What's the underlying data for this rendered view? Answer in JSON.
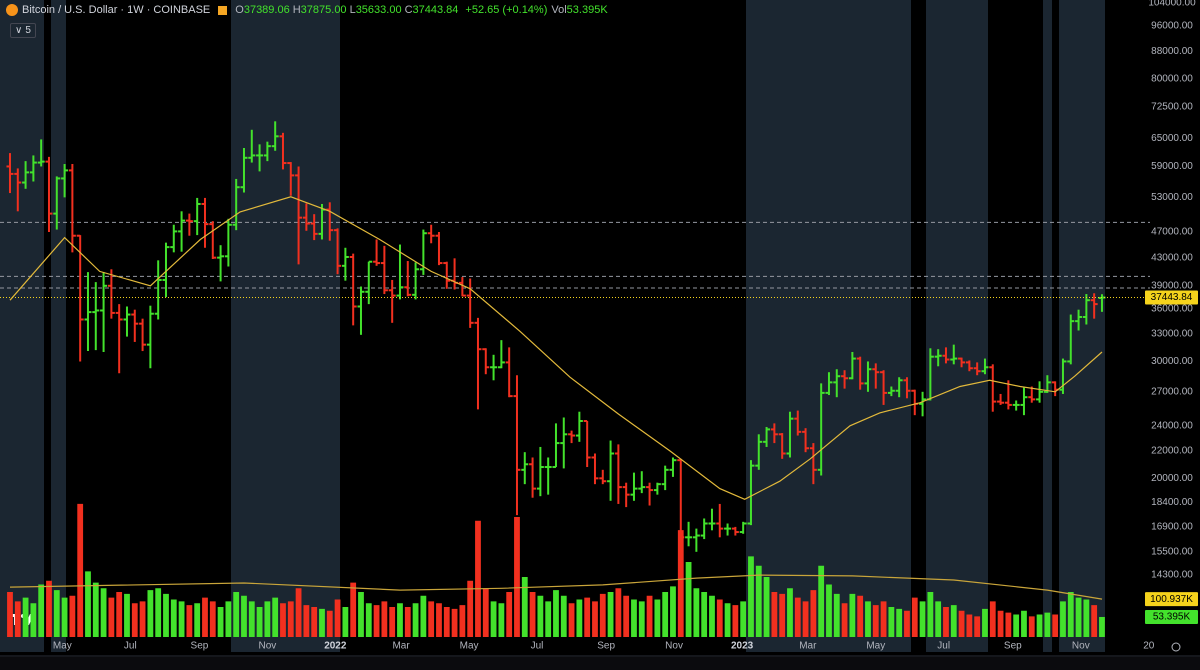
{
  "chart_data": {
    "type": "ohlc",
    "title": "Bitcoin / U.S. Dollar · 1W · COINBASE",
    "legend_values": [
      {
        "label": "O",
        "text": "37389.06"
      },
      {
        "label": "H",
        "text": "37875.00"
      },
      {
        "label": "L",
        "text": "35633.00"
      },
      {
        "label": "C",
        "text": "37443.84"
      }
    ],
    "change": "+52.65 (+0.14%)",
    "volume_label": "Vol",
    "volume_text": "53.395K",
    "indicator_count": 5,
    "log_scale": true,
    "up_color": "#43e22c",
    "down_color": "#f2301f",
    "ylim": [
      10950,
      105100
    ],
    "yticks": [
      {
        "value": 104000,
        "label": "104000.00"
      },
      {
        "value": 96000,
        "label": "96000.00"
      },
      {
        "value": 88000,
        "label": "88000.00"
      },
      {
        "value": 80000,
        "label": "80000.00"
      },
      {
        "value": 72500,
        "label": "72500.00"
      },
      {
        "value": 65000,
        "label": "65000.00"
      },
      {
        "value": 59000,
        "label": "59000.00"
      },
      {
        "value": 53000,
        "label": "53000.00"
      },
      {
        "value": 47000,
        "label": "47000.00"
      },
      {
        "value": 43000,
        "label": "43000.00"
      },
      {
        "value": 39000,
        "label": "39000.00"
      },
      {
        "value": 36000,
        "label": "36000.00"
      },
      {
        "value": 33000,
        "label": "33000.00"
      },
      {
        "value": 30000,
        "label": "30000.00"
      },
      {
        "value": 27000,
        "label": "27000.00"
      },
      {
        "value": 24000,
        "label": "24000.00"
      },
      {
        "value": 22000,
        "label": "22000.00"
      },
      {
        "value": 20000,
        "label": "20000.00"
      },
      {
        "value": 18400,
        "label": "18400.00"
      },
      {
        "value": 16900,
        "label": "16900.00"
      },
      {
        "value": 15500,
        "label": "15500.00"
      },
      {
        "value": 14300,
        "label": "14300.00"
      }
    ],
    "xlim": [
      -1.28,
      141.03
    ],
    "xticks": [
      {
        "value": 6.71,
        "label": "May"
      },
      {
        "value": 15.43,
        "label": "Jul"
      },
      {
        "value": 24.29,
        "label": "Sep"
      },
      {
        "value": 33.0,
        "label": "Nov"
      },
      {
        "value": 41.71,
        "label": "2022"
      },
      {
        "value": 50.14,
        "label": "Mar"
      },
      {
        "value": 58.86,
        "label": "May"
      },
      {
        "value": 67.57,
        "label": "Jul"
      },
      {
        "value": 76.43,
        "label": "Sep"
      },
      {
        "value": 85.14,
        "label": "Nov"
      },
      {
        "value": 93.86,
        "label": "2023"
      },
      {
        "value": 102.29,
        "label": "Mar"
      },
      {
        "value": 111.0,
        "label": "May"
      },
      {
        "value": 119.71,
        "label": "Jul"
      },
      {
        "value": 128.57,
        "label": "Sep"
      },
      {
        "value": 137.29,
        "label": "Nov"
      },
      {
        "value": 146.0,
        "label": "20"
      }
    ],
    "open": [
      59000,
      57500,
      55800,
      57800,
      59800,
      60000,
      50100,
      56600,
      58200,
      46400,
      34700,
      35600,
      35800,
      39000,
      35500,
      34700,
      35300,
      34200,
      31800,
      35400,
      39800,
      44600,
      47100,
      48900,
      48800,
      51800,
      48300,
      43000,
      43200,
      48200,
      54900,
      60800,
      61300,
      61300,
      63300,
      65500,
      59700,
      57200,
      49400,
      48400,
      46700,
      50800,
      47300,
      41800,
      43100,
      36300,
      38200,
      42400,
      42200,
      38400,
      37700,
      38800,
      37800,
      41300,
      46800,
      46400,
      42200,
      39700,
      39400,
      37700,
      34300,
      31300,
      29400,
      29400,
      29900,
      26600,
      20600,
      21000,
      19300,
      20800,
      20800,
      22600,
      23300,
      23200,
      24400,
      21500,
      20000,
      19800,
      21800,
      19400,
      18900,
      19300,
      19400,
      19200,
      19600,
      20600,
      21300,
      16300,
      16300,
      16400,
      17100,
      17100,
      16800,
      16800,
      16600,
      17100,
      20900,
      22700,
      23700,
      23300,
      21800,
      24600,
      23500,
      22200,
      20600,
      26900,
      27900,
      28500,
      28300,
      30300,
      27800,
      29200,
      28900,
      26900,
      27100,
      28100,
      27100,
      25900,
      26300,
      30500,
      30600,
      30200,
      30300,
      29900,
      29300,
      29000,
      29400,
      26100,
      26000,
      25800,
      25800,
      26500,
      26300,
      27000,
      27900,
      27200,
      30000,
      34500,
      35000,
      37100,
      37389.06
    ],
    "high": [
      61800,
      58600,
      60100,
      61300,
      64800,
      61000,
      57000,
      59500,
      59500,
      46500,
      40900,
      39500,
      40900,
      41300,
      36600,
      36300,
      35900,
      34800,
      36400,
      42600,
      45300,
      48200,
      50500,
      50100,
      52900,
      52900,
      48800,
      44900,
      49200,
      56500,
      62900,
      67000,
      63700,
      64300,
      69000,
      66300,
      59900,
      59000,
      51900,
      50000,
      51800,
      52100,
      47600,
      44500,
      43600,
      38900,
      42400,
      45800,
      44800,
      39800,
      45000,
      42500,
      42300,
      47400,
      48200,
      47000,
      42400,
      42900,
      40200,
      40000,
      34900,
      31400,
      30700,
      32300,
      31500,
      28600,
      21900,
      21500,
      22300,
      21500,
      24200,
      24700,
      23600,
      25200,
      24400,
      21800,
      20600,
      22800,
      22500,
      19700,
      20400,
      20500,
      19700,
      19700,
      20900,
      21500,
      21400,
      17200,
      16800,
      17400,
      18000,
      18300,
      17100,
      16900,
      17200,
      21300,
      23300,
      23900,
      24200,
      23400,
      25200,
      25300,
      23800,
      22600,
      27800,
      28900,
      29200,
      29100,
      31000,
      30500,
      30000,
      29800,
      29100,
      27500,
      28400,
      28400,
      27200,
      27000,
      31400,
      31300,
      31500,
      31800,
      30400,
      30100,
      29900,
      30300,
      29700,
      26800,
      28100,
      26200,
      27400,
      27500,
      28000,
      28600,
      28000,
      30300,
      35300,
      35900,
      37900,
      38000,
      37875
    ],
    "low": [
      53800,
      50500,
      54600,
      56000,
      59000,
      47000,
      47400,
      53000,
      43800,
      30000,
      31100,
      31200,
      31000,
      34800,
      28800,
      32700,
      32100,
      31100,
      29300,
      34700,
      37500,
      43800,
      43900,
      46400,
      46500,
      44500,
      42800,
      39600,
      41700,
      47300,
      53900,
      59800,
      58000,
      60100,
      62300,
      58400,
      53300,
      42000,
      47200,
      45700,
      45800,
      45600,
      40600,
      39700,
      34000,
      32900,
      36600,
      41800,
      37900,
      34300,
      37200,
      37600,
      37200,
      40500,
      45200,
      41900,
      38600,
      38500,
      37600,
      33700,
      25400,
      28700,
      28100,
      29300,
      26500,
      17600,
      19600,
      18700,
      18800,
      18900,
      20800,
      20700,
      22600,
      22700,
      20800,
      19600,
      19600,
      18500,
      18300,
      18100,
      18500,
      19000,
      18200,
      18900,
      19200,
      20100,
      15600,
      15800,
      15500,
      16200,
      16700,
      16300,
      16400,
      16400,
      16500,
      17000,
      20600,
      22300,
      22600,
      21400,
      21500,
      23200,
      21900,
      19600,
      20200,
      26700,
      26500,
      27300,
      28200,
      27200,
      27000,
      27300,
      25800,
      26600,
      26500,
      26400,
      24900,
      24800,
      26200,
      29500,
      29800,
      29700,
      29400,
      29000,
      28600,
      28700,
      25200,
      25800,
      25400,
      25300,
      24900,
      26000,
      26000,
      26900,
      26600,
      26800,
      29700,
      33400,
      34100,
      34800,
      35633
    ],
    "close": [
      57500,
      55800,
      57800,
      59800,
      60000,
      50100,
      56600,
      58200,
      46400,
      34700,
      35600,
      35800,
      39000,
      35500,
      34700,
      35300,
      34200,
      31800,
      35400,
      39800,
      44600,
      47100,
      48900,
      48800,
      51800,
      48300,
      43000,
      43200,
      48200,
      54900,
      60800,
      61300,
      61300,
      63300,
      65500,
      59700,
      57200,
      49400,
      48400,
      46700,
      50800,
      47300,
      41800,
      43100,
      36300,
      38200,
      42400,
      42200,
      38400,
      37700,
      38800,
      37800,
      41300,
      46800,
      46400,
      42200,
      39700,
      39400,
      37700,
      34300,
      31300,
      29400,
      29400,
      29900,
      26600,
      20600,
      21000,
      19300,
      20800,
      20800,
      22600,
      23300,
      23200,
      24400,
      21500,
      20000,
      19800,
      21800,
      19400,
      18900,
      19300,
      19400,
      19200,
      19600,
      20600,
      21300,
      16300,
      16300,
      16400,
      17100,
      17100,
      16800,
      16800,
      16600,
      17100,
      20900,
      22700,
      23700,
      23300,
      21800,
      24600,
      23500,
      22200,
      20600,
      26900,
      27900,
      28500,
      28300,
      30300,
      27800,
      29200,
      28900,
      26900,
      27100,
      28100,
      27100,
      25900,
      26300,
      30500,
      30600,
      30200,
      30300,
      29900,
      29300,
      29000,
      29400,
      26100,
      26000,
      25800,
      25800,
      26500,
      26300,
      27000,
      27900,
      27200,
      30000,
      34500,
      35000,
      37100,
      36600,
      37443.84
    ],
    "volume": {
      "values": [
        120,
        95,
        105,
        90,
        140,
        150,
        125,
        105,
        110,
        355,
        175,
        145,
        130,
        105,
        120,
        115,
        90,
        95,
        125,
        130,
        115,
        100,
        95,
        85,
        90,
        105,
        95,
        80,
        95,
        120,
        110,
        95,
        80,
        95,
        105,
        90,
        95,
        130,
        85,
        80,
        75,
        70,
        100,
        80,
        145,
        120,
        90,
        85,
        95,
        80,
        90,
        80,
        90,
        110,
        95,
        90,
        80,
        75,
        85,
        150,
        310,
        130,
        95,
        90,
        120,
        320,
        160,
        120,
        110,
        95,
        125,
        110,
        90,
        100,
        105,
        95,
        115,
        120,
        130,
        110,
        100,
        95,
        110,
        100,
        120,
        135,
        285,
        200,
        130,
        120,
        110,
        100,
        90,
        85,
        95,
        215,
        190,
        160,
        120,
        115,
        130,
        105,
        95,
        125,
        190,
        140,
        115,
        90,
        115,
        110,
        95,
        85,
        95,
        80,
        75,
        70,
        105,
        95,
        120,
        95,
        80,
        85,
        70,
        60,
        55,
        75,
        95,
        70,
        65,
        60,
        70,
        55,
        60,
        65,
        60,
        95,
        120,
        105,
        100,
        85,
        53.395
      ],
      "last_label": "53.395K",
      "ylim": [
        0,
        1600
      ]
    },
    "ma": {
      "color": "#e2b93b",
      "x": [
        0,
        7,
        11.5,
        18,
        24.4,
        29.5,
        36,
        41,
        47.4,
        54,
        59,
        65.4,
        71.8,
        78,
        84.6,
        91,
        94.2,
        98.7,
        102.6,
        107.7,
        111.5,
        116.7,
        121.8,
        125.6,
        129.5,
        134,
        136.5,
        140
      ],
      "values": [
        37100,
        46100,
        41000,
        39000,
        45800,
        50400,
        53100,
        50500,
        45800,
        41000,
        38600,
        33300,
        28400,
        25000,
        22000,
        19300,
        18600,
        19800,
        21400,
        24000,
        25100,
        26000,
        27500,
        28100,
        27500,
        27000,
        28500,
        31000
      ]
    },
    "volume_ma": {
      "color": "#c9a53a",
      "x": [
        0,
        30,
        50,
        63,
        76,
        88,
        96,
        108,
        121,
        133,
        140
      ],
      "values": [
        133,
        144,
        125,
        130,
        139,
        157,
        165,
        163,
        152,
        125,
        100.937
      ],
      "last_label": "100.937K"
    },
    "levels": [
      48600,
      40300,
      38700
    ]
  }
}
